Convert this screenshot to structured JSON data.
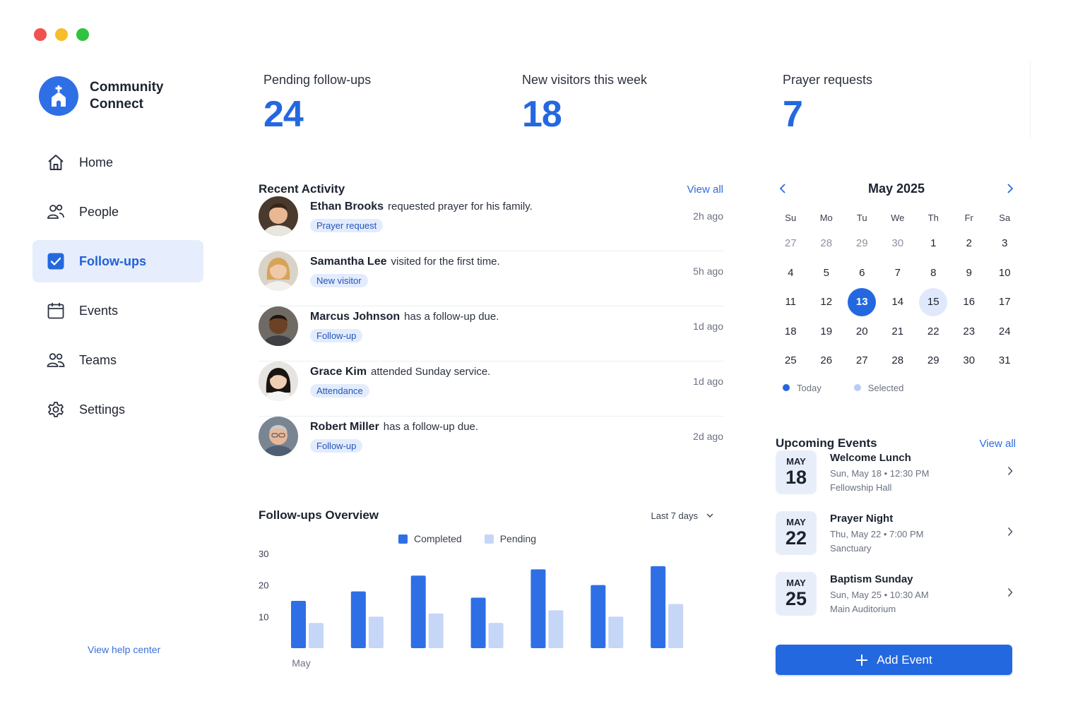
{
  "brand": {
    "name": "Community Connect",
    "logo_icon": "church-icon",
    "color": "#2f6fe6"
  },
  "sidebar": {
    "items": [
      {
        "label": "Home",
        "icon": "home-icon",
        "active": false
      },
      {
        "label": "People",
        "icon": "people-icon",
        "active": false
      },
      {
        "label": "Follow-ups",
        "icon": "checkbox-icon",
        "active": true
      },
      {
        "label": "Events",
        "icon": "calendar-icon",
        "active": false
      },
      {
        "label": "Teams",
        "icon": "team-icon",
        "active": false
      },
      {
        "label": "Settings",
        "icon": "gear-icon",
        "active": false
      }
    ],
    "help_link": "View help center"
  },
  "stats": [
    {
      "label": "Pending follow-ups",
      "value": "24"
    },
    {
      "label": "New visitors this week",
      "value": "18"
    },
    {
      "label": "Prayer requests",
      "value": "7"
    }
  ],
  "activity": {
    "title": "Recent Activity",
    "view_all": "View all",
    "items": [
      {
        "name": "Ethan Brooks",
        "text": "requested prayer for his family.",
        "tag": "Prayer request",
        "time": "2h ago"
      },
      {
        "name": "Samantha Lee",
        "text": "visited for the first time.",
        "tag": "New visitor",
        "time": "5h ago"
      },
      {
        "name": "Marcus Johnson",
        "text": "has a follow-up due.",
        "tag": "Follow-up",
        "time": "1d ago"
      },
      {
        "name": "Grace Kim",
        "text": "attended Sunday service.",
        "tag": "Attendance",
        "time": "1d ago"
      },
      {
        "name": "Robert Miller",
        "text": "has a follow-up due.",
        "tag": "Follow-up",
        "time": "2d ago"
      }
    ]
  },
  "overview": {
    "title": "Follow-ups Overview",
    "range": "Last 7 days",
    "legend_completed": "Completed",
    "legend_pending": "Pending"
  },
  "chart_data": {
    "type": "bar",
    "categories": [
      "May",
      "",
      "",
      "",
      "",
      "",
      ""
    ],
    "series": [
      {
        "name": "Completed",
        "color": "#2f6fe6",
        "values": [
          15,
          18,
          23,
          16,
          25,
          20,
          26
        ]
      },
      {
        "name": "Pending",
        "color": "#c6d6f7",
        "values": [
          8,
          10,
          11,
          8,
          12,
          10,
          14
        ]
      }
    ],
    "yticks": [
      30,
      20,
      10
    ],
    "ylim": [
      0,
      30
    ],
    "grid": false,
    "legend": "top"
  },
  "calendar": {
    "title": "May 2025",
    "weekdays": [
      "Su",
      "Mo",
      "Tu",
      "We",
      "Th",
      "Fr",
      "Sa"
    ],
    "weeks": [
      [
        "27",
        "28",
        "29",
        "30",
        "1",
        "2",
        "3"
      ],
      [
        "4",
        "5",
        "6",
        "7",
        "8",
        "9",
        "10"
      ],
      [
        "11",
        "12",
        "13",
        "14",
        "15",
        "16",
        "17"
      ],
      [
        "18",
        "19",
        "20",
        "21",
        "22",
        "23",
        "24"
      ],
      [
        "25",
        "26",
        "27",
        "28",
        "29",
        "30",
        "31"
      ]
    ],
    "muted_first_week_count": 4,
    "today": "13",
    "selected": "15",
    "legend_today": "Today",
    "legend_selected": "Selected"
  },
  "events": {
    "title": "Upcoming Events",
    "view_all": "View all",
    "items": [
      {
        "month": "MAY",
        "day": "18",
        "title": "Welcome Lunch",
        "when": "Sun, May 18  •  12:30 PM",
        "place": "Fellowship Hall"
      },
      {
        "month": "MAY",
        "day": "22",
        "title": "Prayer Night",
        "when": "Thu, May 22  •  7:00 PM",
        "place": "Sanctuary"
      },
      {
        "month": "MAY",
        "day": "25",
        "title": "Baptism Sunday",
        "when": "Sun, May 25  •  10:30 AM",
        "place": "Main Auditorium"
      }
    ],
    "add_button": "Add Event"
  }
}
